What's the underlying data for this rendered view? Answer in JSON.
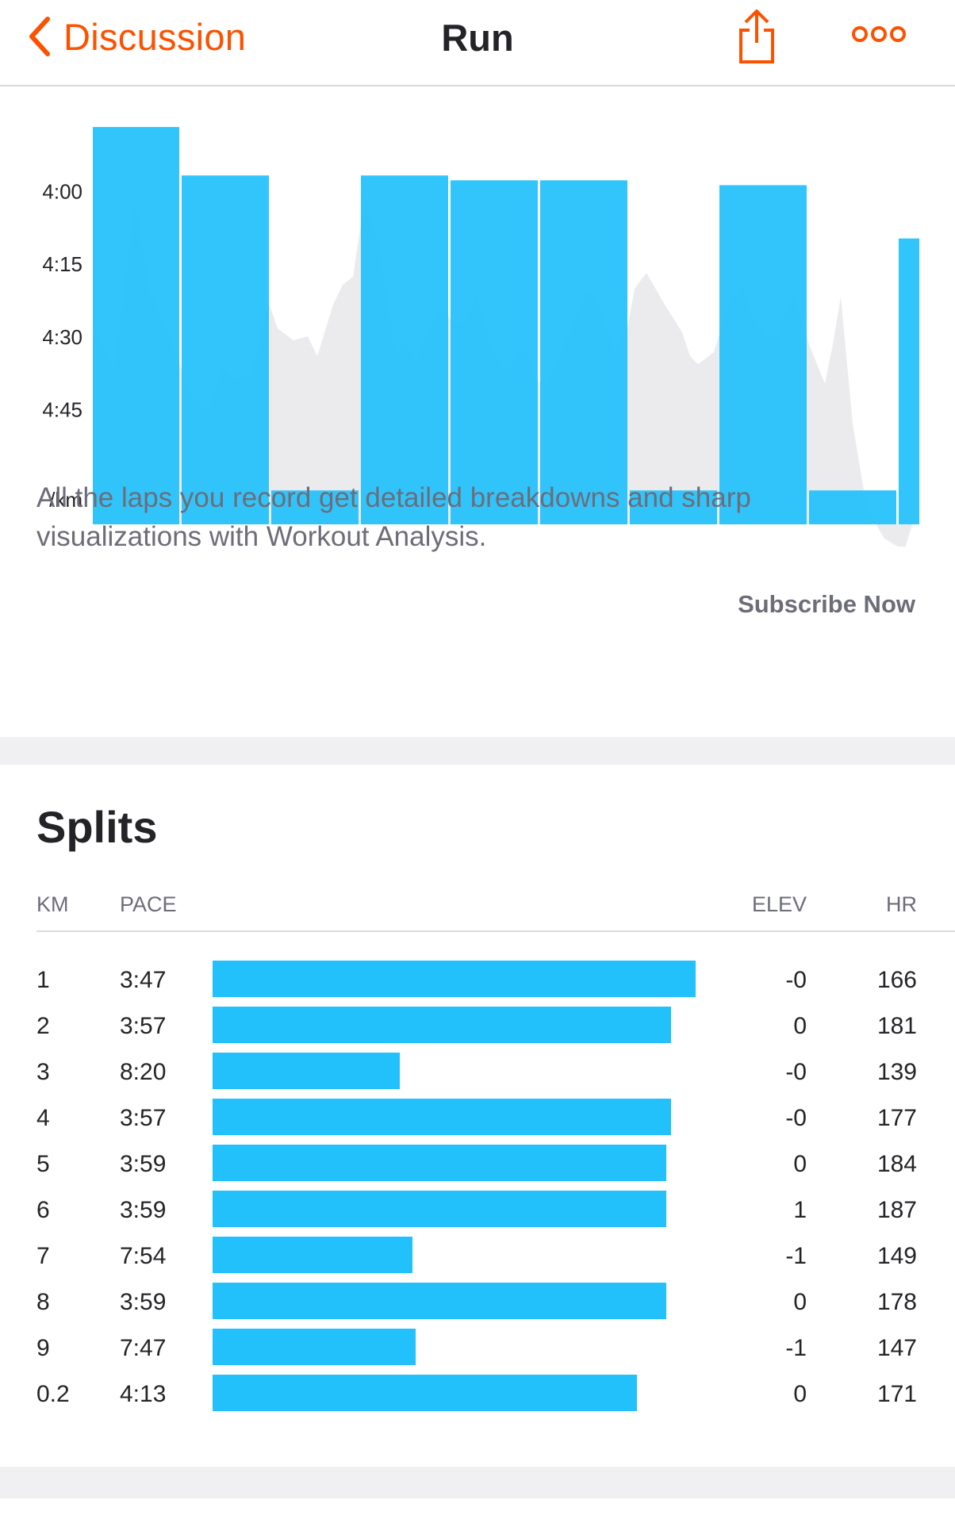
{
  "navbar": {
    "back_label": "Discussion",
    "title": "Run",
    "icons": {
      "back": "chevron-left-icon",
      "share": "share-icon",
      "more": "more-icon"
    },
    "accent_color": "#fc5200"
  },
  "chart_data": {
    "type": "bar",
    "description_of_axis": "pace per lap",
    "y_tick_labels": [
      "4:00",
      "4:15",
      "4:30",
      "4:45",
      "/km"
    ],
    "y_tick_values_sec": [
      240,
      255,
      270,
      285
    ],
    "ylim_sec": [
      226,
      309
    ],
    "y_inverted": true,
    "bar_color": "#22c1fc",
    "background_series_color": "#ebebee",
    "laps": [
      {
        "pace_sec": 227
      },
      {
        "pace_sec": 237
      },
      {
        "pace_sec": 302
      },
      {
        "pace_sec": 237
      },
      {
        "pace_sec": 238
      },
      {
        "pace_sec": 238
      },
      {
        "pace_sec": 302
      },
      {
        "pace_sec": 239
      },
      {
        "pace_sec": 302
      },
      {
        "pace_sec": 250
      }
    ]
  },
  "promo": {
    "text": "All the laps you record get detailed breakdowns and sharp visualizations with Workout Analysis.",
    "cta": "Subscribe Now"
  },
  "splits": {
    "title": "Splits",
    "headers": {
      "km": "KM",
      "pace": "PACE",
      "elev": "ELEV",
      "hr": "HR"
    },
    "bar_color": "#22c1fc",
    "rows": [
      {
        "km": "1",
        "pace": "3:47",
        "elev": "-0",
        "hr": "166",
        "pace_sec": 227
      },
      {
        "km": "2",
        "pace": "3:57",
        "elev": "0",
        "hr": "181",
        "pace_sec": 237
      },
      {
        "km": "3",
        "pace": "8:20",
        "elev": "-0",
        "hr": "139",
        "pace_sec": 500
      },
      {
        "km": "4",
        "pace": "3:57",
        "elev": "-0",
        "hr": "177",
        "pace_sec": 237
      },
      {
        "km": "5",
        "pace": "3:59",
        "elev": "0",
        "hr": "184",
        "pace_sec": 239
      },
      {
        "km": "6",
        "pace": "3:59",
        "elev": "1",
        "hr": "187",
        "pace_sec": 239
      },
      {
        "km": "7",
        "pace": "7:54",
        "elev": "-1",
        "hr": "149",
        "pace_sec": 474
      },
      {
        "km": "8",
        "pace": "3:59",
        "elev": "0",
        "hr": "178",
        "pace_sec": 239
      },
      {
        "km": "9",
        "pace": "7:47",
        "elev": "-1",
        "hr": "147",
        "pace_sec": 467
      },
      {
        "km": "0.2",
        "pace": "4:13",
        "elev": "0",
        "hr": "171",
        "pace_sec": 253
      }
    ]
  }
}
